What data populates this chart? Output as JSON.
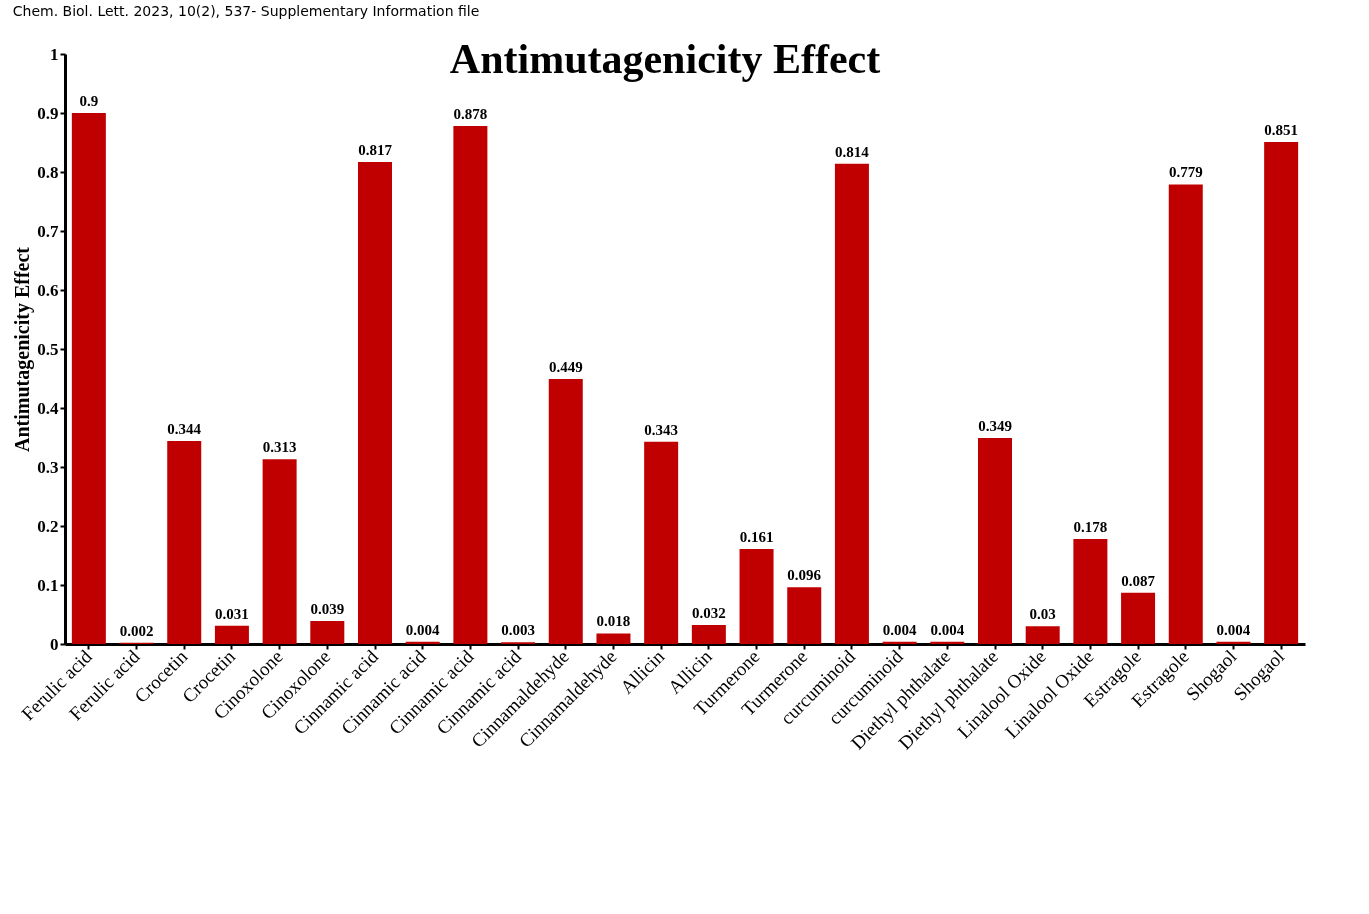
{
  "chart_data": {
    "type": "bar",
    "title": "Antimutagenicity Effect",
    "ylabel": "Antimutagenicity Effect",
    "annotations": [
      "Chem. Biol. Lett. 2023, 10(2), 537- Supplementary Information file"
    ],
    "categories": [
      "Ferulic acid",
      "Ferulic acid",
      "Crocetin",
      "Crocetin",
      "Cinoxolone",
      "Cinoxolone",
      "Cinnamic acid",
      "Cinnamic acid",
      "Cinnamic acid",
      "Cinnamic acid",
      "Cinnamaldehyde",
      "Cinnamaldehyde",
      "Allicin",
      "Allicin",
      "Turmerone",
      "Turmerone",
      "curcuminoid",
      "curcuminoid",
      "Diethyl phthalate",
      "Diethyl phthalate",
      "Linalool Oxide",
      "Linalool Oxide",
      "Estragole",
      "Estragole",
      "Shogaol",
      "Shogaol"
    ],
    "values": [
      0.9,
      0.002,
      0.344,
      0.031,
      0.313,
      0.039,
      0.817,
      0.004,
      0.878,
      0.003,
      0.449,
      0.018,
      0.343,
      0.032,
      0.161,
      0.096,
      0.814,
      0.004,
      0.004,
      0.349,
      0.03,
      0.178,
      0.087,
      0.779,
      0.004,
      0.851
    ],
    "color": "#c00000",
    "data_labels": true,
    "grid": false,
    "ylim": [
      0,
      1
    ],
    "yticks": [
      0,
      0.1,
      0.2,
      0.3,
      0.4,
      0.5,
      0.6,
      0.7,
      0.8,
      0.9,
      1
    ]
  }
}
